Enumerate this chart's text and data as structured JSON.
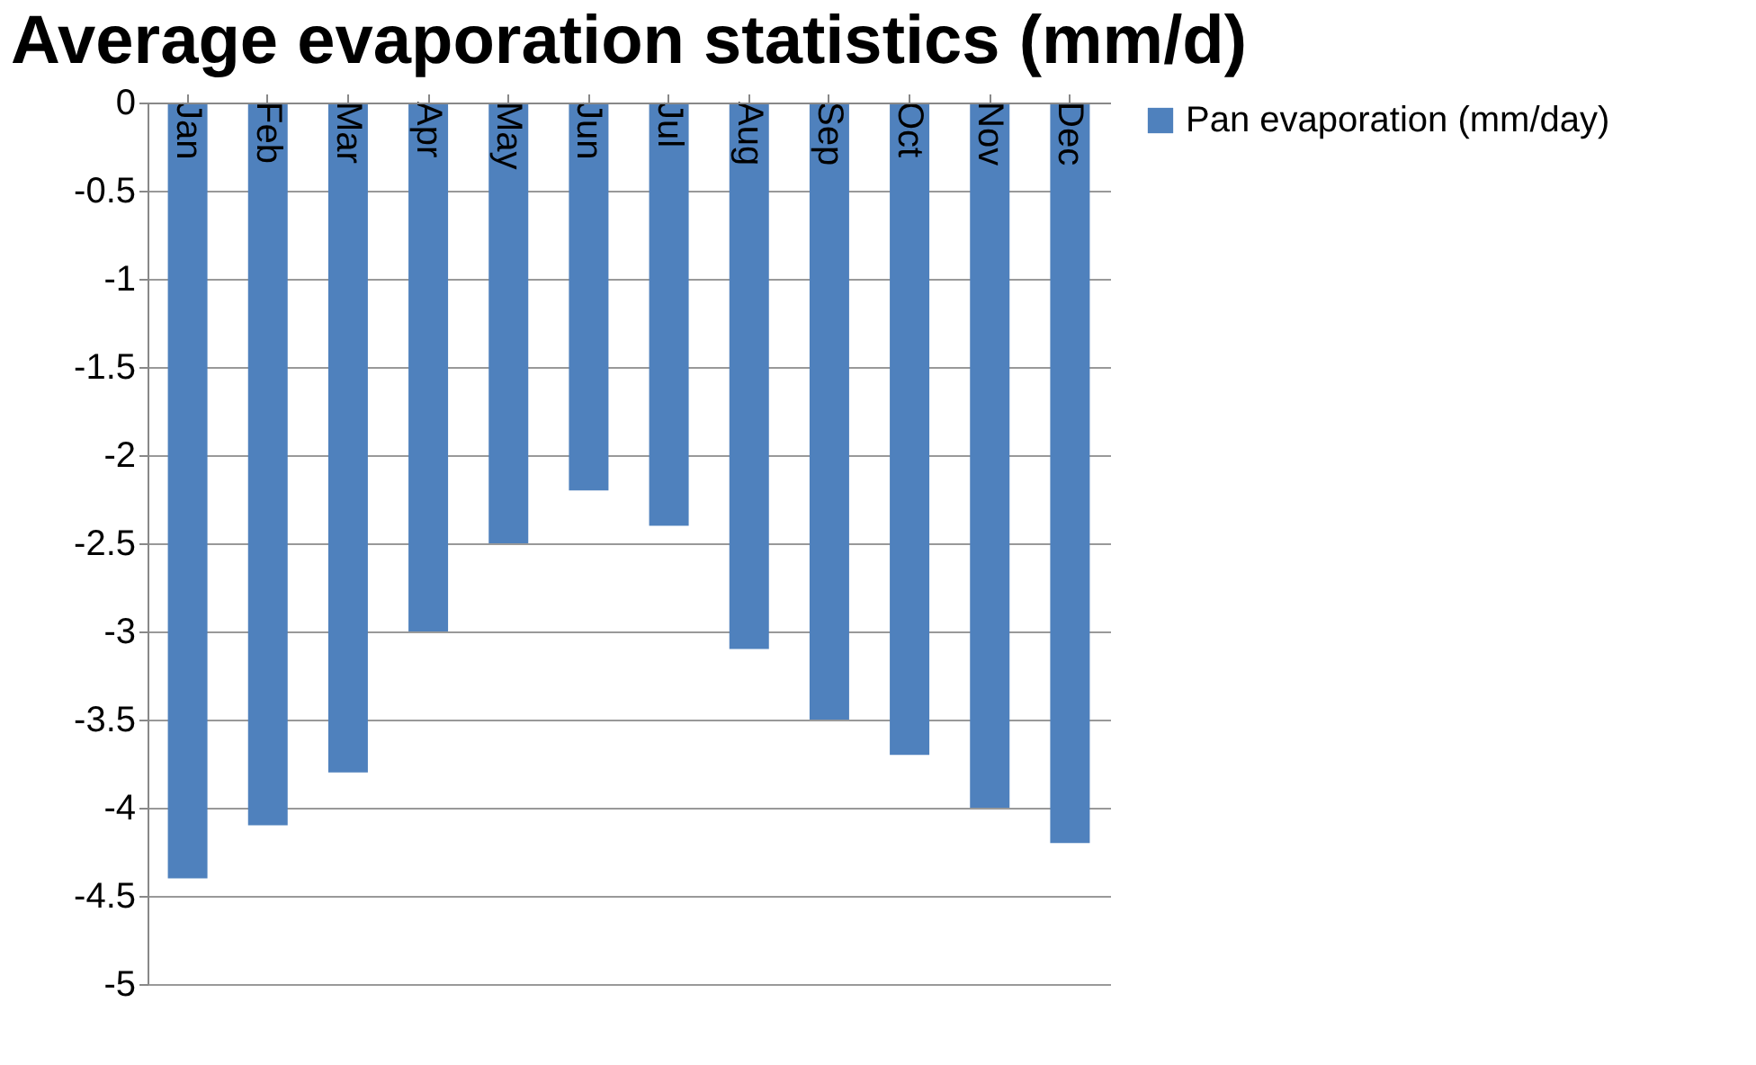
{
  "chart_data": {
    "type": "bar",
    "title": "Average evaporation statistics (mm/d)",
    "categories": [
      "Jan",
      "Feb",
      "Mar",
      "Apr",
      "May",
      "Jun",
      "Jul",
      "Aug",
      "Sep",
      "Oct",
      "Nov",
      "Dec"
    ],
    "series": [
      {
        "name": "Pan evaporation (mm/day)",
        "color": "#4f81bd",
        "values": [
          -4.4,
          -4.1,
          -3.8,
          -3.0,
          -2.5,
          -2.2,
          -2.4,
          -3.1,
          -3.5,
          -3.7,
          -4.0,
          -4.2
        ]
      }
    ],
    "ylim": [
      -5,
      0
    ],
    "yticks": [
      0,
      -0.5,
      -1,
      -1.5,
      -2,
      -2.5,
      -3,
      -3.5,
      -4,
      -4.5,
      -5
    ],
    "grid": "y",
    "legend": "right"
  }
}
